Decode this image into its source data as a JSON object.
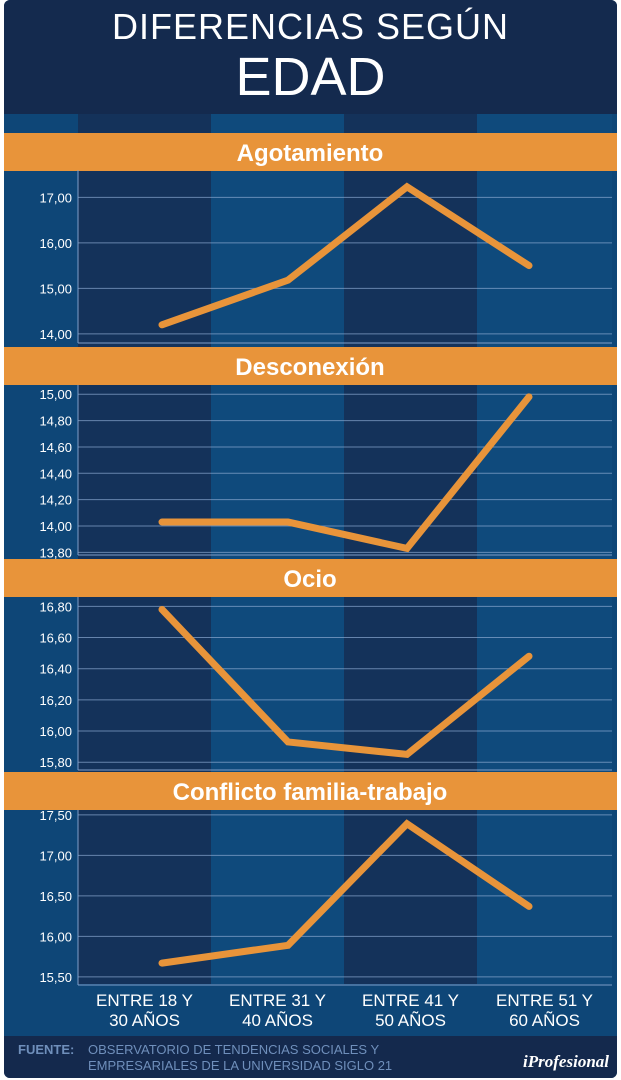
{
  "title": {
    "line1": "DIFERENCIAS SEGÚN",
    "line2": "EDAD"
  },
  "colors": {
    "orange": "#e8943a",
    "band_dark": "#14325a",
    "band_light": "#0f4a7c",
    "title_bg": "#142a4e"
  },
  "categories": [
    "ENTRE 18 Y|30 AÑOS",
    "ENTRE 31 Y|40 AÑOS",
    "ENTRE 41 Y|50 AÑOS",
    "ENTRE 51 Y|60 AÑOS"
  ],
  "chart_data": [
    {
      "type": "line",
      "title": "Agotamiento",
      "categories": [
        "ENTRE 18 Y 30 AÑOS",
        "ENTRE 31 Y 40 AÑOS",
        "ENTRE 41 Y 50 AÑOS",
        "ENTRE 51 Y 60 AÑOS"
      ],
      "values": [
        14.2,
        15.18,
        17.23,
        15.5
      ],
      "yticks": [
        "14,00",
        "15,00",
        "16,00",
        "17,00"
      ],
      "ytick_values": [
        14,
        15,
        16,
        17
      ],
      "ylim": [
        13.8,
        17.6
      ],
      "grid": true
    },
    {
      "type": "line",
      "title": "Desconexión",
      "categories": [
        "ENTRE 18 Y 30 AÑOS",
        "ENTRE 31 Y 40 AÑOS",
        "ENTRE 41 Y 50 AÑOS",
        "ENTRE 51 Y 60 AÑOS"
      ],
      "values": [
        14.03,
        14.03,
        13.83,
        14.98
      ],
      "yticks": [
        "13,80",
        "14,00",
        "14,20",
        "14,40",
        "14,60",
        "14,80",
        "15,00"
      ],
      "ytick_values": [
        13.8,
        14.0,
        14.2,
        14.4,
        14.6,
        14.8,
        15.0
      ],
      "ylim": [
        13.78,
        15.07
      ],
      "grid": true
    },
    {
      "type": "line",
      "title": "Ocio",
      "categories": [
        "ENTRE 18 Y 30 AÑOS",
        "ENTRE 31 Y 40 AÑOS",
        "ENTRE 41 Y 50 AÑOS",
        "ENTRE 51 Y 60 AÑOS"
      ],
      "values": [
        16.78,
        15.93,
        15.85,
        16.48
      ],
      "yticks": [
        "15,80",
        "16,00",
        "16,20",
        "16,40",
        "16,60",
        "16,80"
      ],
      "ytick_values": [
        15.8,
        16.0,
        16.2,
        16.4,
        16.6,
        16.8
      ],
      "ylim": [
        15.75,
        16.86
      ],
      "grid": true
    },
    {
      "type": "line",
      "title": "Conflicto familia-trabajo",
      "categories": [
        "ENTRE 18 Y 30 AÑOS",
        "ENTRE 31 Y 40 AÑOS",
        "ENTRE 41 Y 50 AÑOS",
        "ENTRE 51 Y 60 AÑOS"
      ],
      "values": [
        15.67,
        15.89,
        17.39,
        16.37
      ],
      "yticks": [
        "15,50",
        "16,00",
        "16,50",
        "17,00",
        "17,50"
      ],
      "ytick_values": [
        15.5,
        16.0,
        16.5,
        17.0,
        17.5
      ],
      "ylim": [
        15.4,
        17.56
      ],
      "grid": true
    }
  ],
  "footer": {
    "label": "FUENTE:",
    "source": "OBSERVATORIO DE TENDENCIAS SOCIALES Y EMPRESARIALES DE LA UNIVERSIDAD SIGLO 21",
    "logo": "iProfesional"
  }
}
